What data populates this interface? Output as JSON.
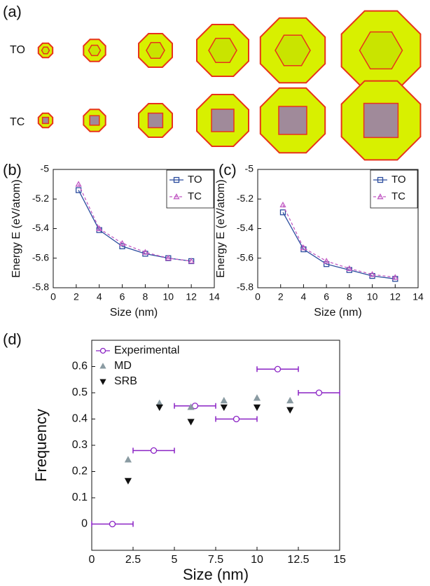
{
  "panel_a": {
    "label": "(a)",
    "row_labels": [
      "TO",
      "TC"
    ]
  },
  "chart_data": [
    {
      "type": "line",
      "panel_label": "(b)",
      "x_label": "Size (nm)",
      "y_label": "Energy E (eV/atom)",
      "x": [
        2.2,
        4,
        6,
        8,
        10,
        12
      ],
      "series": [
        {
          "name": "TO",
          "color": "#2b4c9e",
          "marker": "square",
          "dashed": false,
          "values": [
            -5.14,
            -5.41,
            -5.52,
            -5.57,
            -5.6,
            -5.62
          ]
        },
        {
          "name": "TC",
          "color": "#c25bc4",
          "marker": "triangle-up",
          "dashed": true,
          "values": [
            -5.1,
            -5.4,
            -5.5,
            -5.56,
            -5.6,
            -5.62
          ]
        }
      ],
      "xlim": [
        0,
        14
      ],
      "xticks": [
        0,
        2,
        4,
        6,
        8,
        10,
        12,
        14
      ],
      "ylim": [
        -5.8,
        -5
      ],
      "yticks": [
        -5.8,
        -5.6,
        -5.4,
        -5.2,
        -5
      ],
      "legend": "upper right"
    },
    {
      "type": "line",
      "panel_label": "(c)",
      "x_label": "Size (nm)",
      "y_label": "Energy E (eV/atom)",
      "x": [
        2.2,
        4,
        6,
        8,
        10,
        12
      ],
      "series": [
        {
          "name": "TO",
          "color": "#2b4c9e",
          "marker": "square",
          "dashed": false,
          "values": [
            -5.29,
            -5.54,
            -5.64,
            -5.68,
            -5.72,
            -5.74
          ]
        },
        {
          "name": "TC",
          "color": "#c25bc4",
          "marker": "triangle-up",
          "dashed": true,
          "values": [
            -5.24,
            -5.53,
            -5.62,
            -5.67,
            -5.71,
            -5.73
          ]
        }
      ],
      "xlim": [
        0,
        14
      ],
      "xticks": [
        0,
        2,
        4,
        6,
        8,
        10,
        12,
        14
      ],
      "ylim": [
        -5.8,
        -5
      ],
      "yticks": [
        -5.8,
        -5.6,
        -5.4,
        -5.2,
        -5
      ],
      "legend": "upper right"
    },
    {
      "type": "scatter",
      "panel_label": "(d)",
      "x_label": "Size (nm)",
      "y_label": "Frequency",
      "series": [
        {
          "name": "Experimental",
          "color": "#8a22c4",
          "marker": "circle",
          "x": [
            1.25,
            3.75,
            6.25,
            8.75,
            11.25,
            13.75
          ],
          "x_errors": [
            1.25,
            1.25,
            1.25,
            1.25,
            1.25,
            1.25
          ],
          "values": [
            0,
            0.28,
            0.45,
            0.4,
            0.59,
            0.5
          ]
        },
        {
          "name": "MD",
          "color": "#8a9ba2",
          "marker": "triangle-up",
          "x": [
            2.2,
            4.1,
            6.0,
            8.0,
            10.0,
            12.0
          ],
          "values": [
            0.245,
            0.46,
            0.445,
            0.47,
            0.48,
            0.47
          ]
        },
        {
          "name": "SRB",
          "color": "#111111",
          "marker": "triangle-down",
          "x": [
            2.2,
            4.1,
            6.0,
            8.0,
            10.0,
            12.0
          ],
          "values": [
            0.165,
            0.445,
            0.39,
            0.445,
            0.445,
            0.435
          ]
        }
      ],
      "xlim": [
        0,
        15
      ],
      "xticks": [
        0,
        2.5,
        5,
        7.5,
        10,
        12.5,
        15
      ],
      "ylim": [
        -0.1,
        0.7
      ],
      "yticks": [
        0,
        0.1,
        0.2,
        0.3,
        0.4,
        0.5,
        0.6
      ],
      "legend": "upper left"
    }
  ]
}
